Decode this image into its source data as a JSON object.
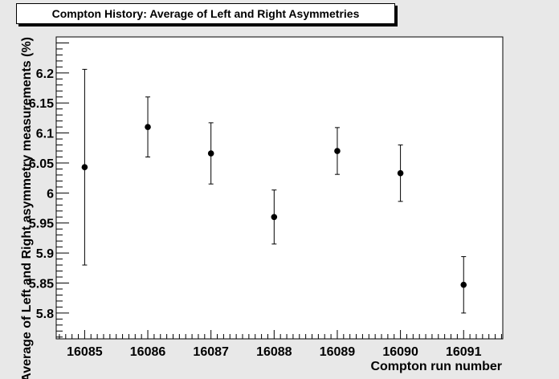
{
  "chart_data": {
    "type": "scatter",
    "title": "Compton History: Average of Left and Right Asymmetries",
    "xlabel": "Compton run number",
    "ylabel": "Average of Left and Right asymmetry measurements (%)",
    "x_ticks": [
      "16085",
      "16086",
      "16087",
      "16088",
      "16089",
      "16090",
      "16091"
    ],
    "y_ticks": [
      "5.8",
      "5.85",
      "5.9",
      "5.95",
      "6",
      "6.05",
      "6.1",
      "6.15",
      "6.2"
    ],
    "xlim": [
      16084.55,
      16091.62
    ],
    "ylim": [
      5.757,
      6.26
    ],
    "grid": false,
    "series": [
      {
        "x": [
          16085,
          16086,
          16087,
          16088,
          16089,
          16090,
          16091
        ],
        "y": [
          6.043,
          6.11,
          6.066,
          5.96,
          6.07,
          6.033,
          5.847
        ],
        "error": [
          0.163,
          0.05,
          0.051,
          0.045,
          0.039,
          0.047,
          0.047
        ]
      }
    ],
    "colors": {
      "background": "#e8e8e8",
      "plot": "#ffffff",
      "marker": "#000000"
    }
  }
}
